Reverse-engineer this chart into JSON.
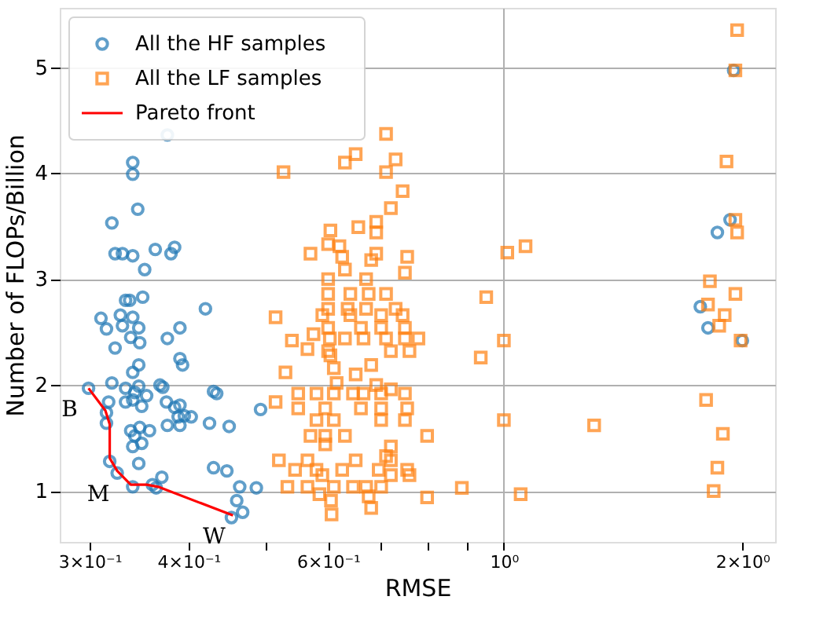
{
  "chart_data": {
    "type": "scatter",
    "xlabel": "RMSE",
    "ylabel": "Number of FLOPs/Billion",
    "log": "x",
    "grid": true,
    "legend": "top left",
    "xlim": [
      0.275,
      2.2
    ],
    "ylim": [
      0.52,
      5.56
    ],
    "xticks": [
      {
        "value": 0.3,
        "label": "3×10⁻¹"
      },
      {
        "value": 0.4,
        "label": "4×10⁻¹"
      },
      {
        "value": 0.5,
        "label": null
      },
      {
        "value": 0.6,
        "label": "6×10⁻¹"
      },
      {
        "value": 0.7,
        "label": null
      },
      {
        "value": 0.8,
        "label": null
      },
      {
        "value": 0.9,
        "label": null
      },
      {
        "value": 1,
        "label": "10⁰"
      },
      {
        "value": 2,
        "label": "2×10⁰"
      }
    ],
    "yticks": [
      1,
      2,
      3,
      4,
      5
    ],
    "annotations": [
      {
        "text": "B",
        "x": 0.299,
        "y": 1.97
      },
      {
        "text": "M",
        "x": 0.325,
        "y": 1.17
      },
      {
        "text": "W",
        "x": 0.455,
        "y": 0.77
      }
    ],
    "series": [
      {
        "name": "All the HF samples",
        "type": "scatter",
        "marker": "circle",
        "color": "#1f77b4",
        "x": [
          0.376,
          0.34,
          0.34,
          0.345,
          0.32,
          0.323,
          0.33,
          0.34,
          0.363,
          0.384,
          0.38,
          0.352,
          0.35,
          0.333,
          0.337,
          0.31,
          0.328,
          0.34,
          0.315,
          0.33,
          0.346,
          0.338,
          0.42,
          0.39,
          0.376,
          0.323,
          0.347,
          0.39,
          0.393,
          0.346,
          0.34,
          0.299,
          0.32,
          0.333,
          0.342,
          0.346,
          0.368,
          0.371,
          0.317,
          0.333,
          0.34,
          0.354,
          0.349,
          0.375,
          0.384,
          0.39,
          0.395,
          0.403,
          0.43,
          0.434,
          0.376,
          0.39,
          0.388,
          0.425,
          0.45,
          0.493,
          0.315,
          0.315,
          0.338,
          0.347,
          0.357,
          0.342,
          0.34,
          0.349,
          0.318,
          0.346,
          0.325,
          0.43,
          0.447,
          0.34,
          0.36,
          0.37,
          0.364,
          0.464,
          0.487,
          0.46,
          0.468,
          0.453,
          1.95,
          1.93,
          1.86,
          1.77,
          1.81,
          2.0
        ],
        "values": [
          4.36,
          4.1,
          3.99,
          3.66,
          3.53,
          3.24,
          3.24,
          3.22,
          3.28,
          3.3,
          3.24,
          3.09,
          2.83,
          2.8,
          2.8,
          2.63,
          2.66,
          2.64,
          2.53,
          2.56,
          2.54,
          2.45,
          2.72,
          2.54,
          2.44,
          2.35,
          2.4,
          2.25,
          2.19,
          2.19,
          2.12,
          1.97,
          2.02,
          1.97,
          1.93,
          1.99,
          2.0,
          1.98,
          1.84,
          1.84,
          1.86,
          1.9,
          1.8,
          1.84,
          1.79,
          1.81,
          1.71,
          1.7,
          1.94,
          1.92,
          1.62,
          1.62,
          1.7,
          1.64,
          1.61,
          1.77,
          1.74,
          1.64,
          1.57,
          1.6,
          1.57,
          1.52,
          1.42,
          1.45,
          1.28,
          1.26,
          1.17,
          1.22,
          1.19,
          1.04,
          1.06,
          1.13,
          1.03,
          1.04,
          1.03,
          0.91,
          0.8,
          0.75,
          4.97,
          3.56,
          3.44,
          2.74,
          2.54,
          2.42
        ]
      },
      {
        "name": "All the LF samples",
        "type": "scatter",
        "marker": "square",
        "color": "#ff7f0e",
        "x": [
          0.71,
          0.65,
          0.63,
          0.73,
          0.71,
          0.527,
          0.745,
          0.72,
          0.69,
          0.69,
          0.604,
          0.655,
          0.6,
          0.62,
          0.57,
          0.625,
          0.63,
          0.68,
          0.69,
          0.755,
          0.75,
          0.6,
          0.67,
          0.6,
          0.64,
          0.675,
          0.71,
          0.6,
          0.635,
          0.67,
          0.73,
          0.515,
          0.59,
          0.64,
          0.7,
          0.745,
          0.6,
          0.66,
          0.7,
          0.75,
          0.54,
          0.575,
          0.565,
          0.603,
          0.63,
          0.665,
          0.71,
          0.75,
          0.78,
          0.6,
          0.72,
          0.76,
          0.604,
          0.61,
          0.68,
          0.53,
          0.615,
          0.65,
          0.69,
          0.72,
          0.55,
          0.58,
          0.61,
          0.645,
          0.665,
          0.7,
          0.75,
          0.515,
          0.55,
          0.595,
          0.66,
          0.7,
          0.755,
          0.58,
          0.61,
          0.7,
          0.75,
          0.57,
          0.595,
          0.63,
          0.8,
          0.595,
          0.72,
          0.71,
          0.52,
          0.565,
          0.65,
          0.72,
          0.545,
          0.58,
          0.625,
          0.695,
          0.755,
          0.59,
          0.72,
          0.76,
          0.533,
          0.565,
          0.61,
          0.645,
          0.67,
          0.7,
          0.585,
          0.675,
          0.8,
          0.885,
          1.05,
          0.605,
          0.68,
          0.606,
          0.95,
          1.0,
          0.935,
          1.0,
          1.01,
          1.065,
          1.97,
          1.96,
          1.91,
          1.96,
          1.97,
          1.82,
          1.96,
          1.81,
          1.9,
          1.87,
          1.99,
          1.8,
          1.89,
          1.86,
          1.84,
          1.3
        ],
        "values": [
          4.37,
          4.18,
          4.1,
          4.13,
          4.01,
          4.01,
          3.83,
          3.67,
          3.54,
          3.44,
          3.46,
          3.49,
          3.33,
          3.31,
          3.24,
          3.21,
          3.09,
          3.18,
          3.24,
          3.21,
          3.06,
          3.0,
          3.0,
          2.86,
          2.86,
          2.86,
          2.86,
          2.72,
          2.72,
          2.72,
          2.72,
          2.64,
          2.66,
          2.66,
          2.66,
          2.66,
          2.54,
          2.54,
          2.54,
          2.54,
          2.42,
          2.48,
          2.34,
          2.44,
          2.44,
          2.44,
          2.44,
          2.44,
          2.44,
          2.32,
          2.32,
          2.32,
          2.28,
          2.16,
          2.19,
          2.12,
          2.02,
          2.1,
          2.0,
          1.96,
          1.92,
          1.92,
          1.92,
          1.92,
          1.92,
          1.92,
          1.92,
          1.84,
          1.78,
          1.78,
          1.78,
          1.78,
          1.78,
          1.67,
          1.67,
          1.67,
          1.67,
          1.52,
          1.52,
          1.52,
          1.52,
          1.44,
          1.42,
          1.33,
          1.29,
          1.29,
          1.29,
          1.29,
          1.2,
          1.2,
          1.2,
          1.2,
          1.2,
          1.15,
          1.15,
          1.15,
          1.04,
          1.04,
          1.04,
          1.04,
          1.04,
          1.04,
          0.97,
          0.95,
          0.94,
          1.03,
          0.97,
          0.91,
          0.84,
          0.78,
          2.83,
          2.42,
          2.26,
          1.67,
          3.25,
          3.31,
          5.35,
          4.97,
          4.11,
          3.56,
          3.44,
          2.98,
          2.86,
          2.76,
          2.66,
          2.56,
          2.42,
          1.86,
          1.54,
          1.22,
          1.0,
          1.62
        ]
      },
      {
        "name": "Pareto front",
        "type": "line",
        "marker": "none",
        "line_style": "solid",
        "color": "#ff0000",
        "x": [
          0.299,
          0.314,
          0.318,
          0.318,
          0.325,
          0.338,
          0.354,
          0.366,
          0.455
        ],
        "values": [
          1.97,
          1.76,
          1.63,
          1.31,
          1.19,
          1.06,
          1.06,
          1.04,
          0.77
        ]
      }
    ]
  }
}
